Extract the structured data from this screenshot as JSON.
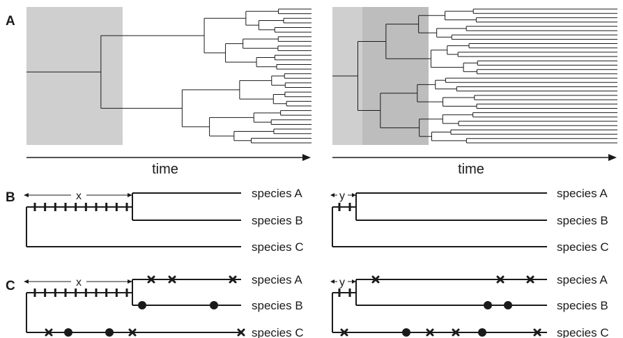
{
  "panels": {
    "a": "A",
    "b": "B",
    "c": "C"
  },
  "axis": {
    "left": "time",
    "right": "time"
  },
  "intervals": {
    "left": "x",
    "right": "y"
  },
  "species": [
    "species A",
    "species B",
    "species C"
  ],
  "colors": {
    "ink": "#1a1a1a",
    "shade": "#cfcfcf",
    "shade_dark": "#b8b8b8"
  }
}
